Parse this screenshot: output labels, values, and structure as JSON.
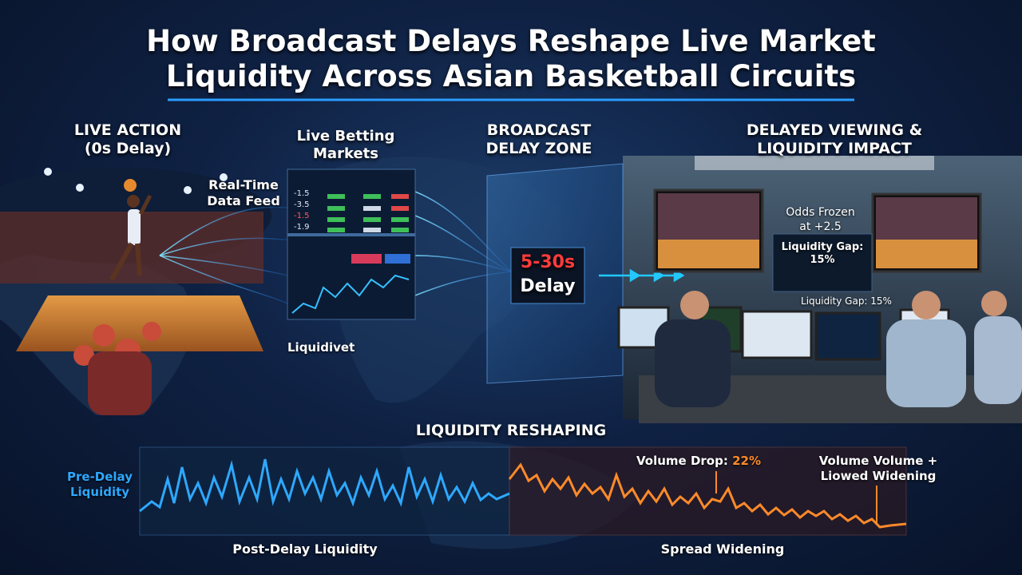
{
  "title": {
    "lines": [
      "How Broadcast Delays Reshape Live Market",
      "Liquidity Across Asian Basketball Circuits"
    ]
  },
  "live_action": {
    "lines": [
      "LIVE ACTION",
      "(0s Delay)"
    ]
  },
  "markets": {
    "title": {
      "lines": [
        "Live Betting Markets"
      ]
    },
    "feed": {
      "lines": [
        "Real-Time",
        "Data Feed"
      ]
    },
    "odds_column": [
      "-1.5",
      "-3.5",
      "-1.5",
      "-1.9"
    ],
    "platform": "Liquidivet"
  },
  "delay_zone": {
    "title": {
      "lines": [
        "BROADCAST",
        "DELAY ZONE"
      ]
    },
    "delay_range": "5-30s",
    "delay_label": "Delay"
  },
  "impact": {
    "title": {
      "lines": [
        "DELAYED VIEWING &",
        "LIQUIDITY IMPACT"
      ]
    },
    "odds_frozen": {
      "lines": [
        "Odds Frozen",
        "at +2.5"
      ]
    },
    "gap_board": "Liquidity Gap: 15%",
    "gap_caption": "Liquidity Gap: 15%"
  },
  "reshaping": {
    "title": "LIQUIDITY RESHAPING",
    "pre_delay": {
      "lines": [
        "Pre-Delay",
        "Liquidity"
      ]
    },
    "volume_drop": {
      "label": "Volume Drop:",
      "value": "22%"
    },
    "widening_note": {
      "lines": [
        "Volume Volume +",
        "Liowed Widening"
      ]
    },
    "post_delay": "Post-Delay Liquidity",
    "spread": "Spread Widening"
  }
}
